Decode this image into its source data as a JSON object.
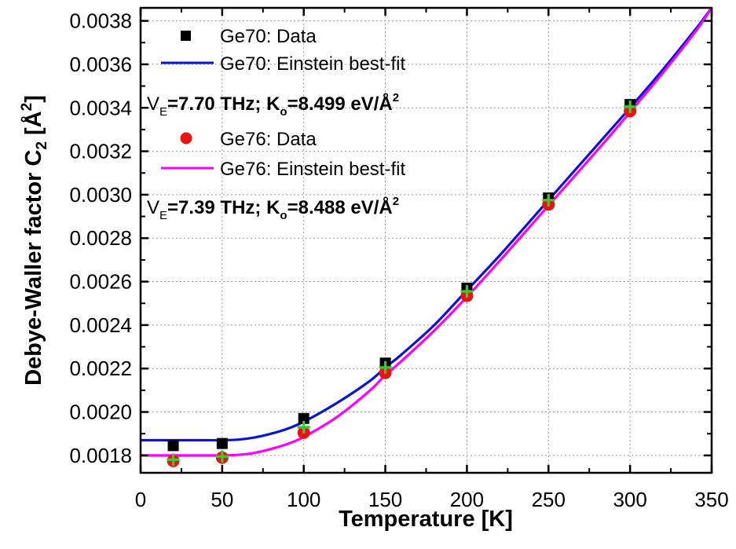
{
  "chart_data": {
    "type": "scatter",
    "title": "",
    "xlabel": "Temperature [K]",
    "ylabel": {
      "main": "Debye-Waller factor C",
      "sub": "2",
      "unit_open": " [Å",
      "sup": "2",
      "unit_close": "]"
    },
    "xlim": [
      0,
      350
    ],
    "ylim": [
      0.00172,
      0.00386
    ],
    "xticks": [
      {
        "value": 0,
        "label": "0"
      },
      {
        "value": 50,
        "label": "50"
      },
      {
        "value": 100,
        "label": "100"
      },
      {
        "value": 150,
        "label": "150"
      },
      {
        "value": 200,
        "label": "200"
      },
      {
        "value": 250,
        "label": "250"
      },
      {
        "value": 300,
        "label": "300"
      },
      {
        "value": 350,
        "label": "350"
      }
    ],
    "yticks": [
      {
        "value": 0.0018,
        "label": "0.0018"
      },
      {
        "value": 0.002,
        "label": "0.0020"
      },
      {
        "value": 0.0022,
        "label": "0.0022"
      },
      {
        "value": 0.0024,
        "label": "0.0024"
      },
      {
        "value": 0.0026,
        "label": "0.0026"
      },
      {
        "value": 0.0028,
        "label": "0.0028"
      },
      {
        "value": 0.003,
        "label": "0.0030"
      },
      {
        "value": 0.0032,
        "label": "0.0032"
      },
      {
        "value": 0.0034,
        "label": "0.0034"
      },
      {
        "value": 0.0036,
        "label": "0.0036"
      },
      {
        "value": 0.0038,
        "label": "0.0038"
      }
    ],
    "grid": "dotted",
    "legend_position": "top-left",
    "series": [
      {
        "name": "Ge70: Data",
        "kind": "points",
        "marker": "square",
        "color": "#000000",
        "x": [
          20,
          50,
          100,
          150,
          200,
          250,
          300
        ],
        "y": [
          0.001845,
          0.001855,
          0.00197,
          0.002225,
          0.00257,
          0.002985,
          0.003415
        ]
      },
      {
        "name": "Ge70: Einstein best-fit",
        "kind": "line",
        "color": "#0a14d4",
        "x": [
          0,
          20,
          40,
          50,
          60,
          70,
          80,
          90,
          100,
          120,
          140,
          150,
          160,
          180,
          200,
          220,
          250,
          280,
          300,
          320,
          340,
          350
        ],
        "y": [
          0.00187,
          0.00187,
          0.00187,
          0.00187,
          0.001873,
          0.001883,
          0.0019,
          0.001923,
          0.001955,
          0.00204,
          0.00214,
          0.002205,
          0.002265,
          0.0024,
          0.00256,
          0.00272,
          0.002975,
          0.00323,
          0.0034,
          0.003575,
          0.00376,
          0.00386
        ]
      },
      {
        "name": "Ge76: Data",
        "kind": "points",
        "marker": "circle",
        "color": "#ee1111",
        "x": [
          20,
          50,
          100,
          150,
          200,
          250,
          300
        ],
        "y": [
          0.001775,
          0.00179,
          0.001905,
          0.00218,
          0.002535,
          0.002955,
          0.003385
        ]
      },
      {
        "name": "Ge76: Einstein best-fit",
        "kind": "line",
        "color": "#ff00ff",
        "x": [
          0,
          20,
          40,
          50,
          60,
          70,
          80,
          90,
          100,
          120,
          140,
          150,
          160,
          180,
          200,
          220,
          250,
          280,
          300,
          320,
          340,
          350
        ],
        "y": [
          0.0018,
          0.0018,
          0.0018,
          0.0018,
          0.001803,
          0.001812,
          0.00183,
          0.001853,
          0.001885,
          0.001975,
          0.002095,
          0.00217,
          0.002235,
          0.002375,
          0.00253,
          0.002695,
          0.00295,
          0.003205,
          0.00338,
          0.00356,
          0.00375,
          0.00386
        ]
      },
      {
        "name": "",
        "kind": "points",
        "marker": "cross",
        "color": "#33cc33",
        "x": [
          20,
          50,
          100,
          150,
          200,
          250,
          300
        ],
        "y": [
          0.00178,
          0.001795,
          0.00193,
          0.002205,
          0.002555,
          0.002975,
          0.003405
        ]
      }
    ],
    "annotations": [
      {
        "prefix": "V",
        "prefix_sub": "E",
        "value1": "=7.70 THz; K",
        "k_sub": "o",
        "value2": "=8.499 eV/Å",
        "sup": "2"
      },
      {
        "prefix": "V",
        "prefix_sub": "E",
        "value1": "=7.39 THz; K",
        "k_sub": "o",
        "value2": "=8.488 eV/Å",
        "sup": "2"
      }
    ]
  }
}
